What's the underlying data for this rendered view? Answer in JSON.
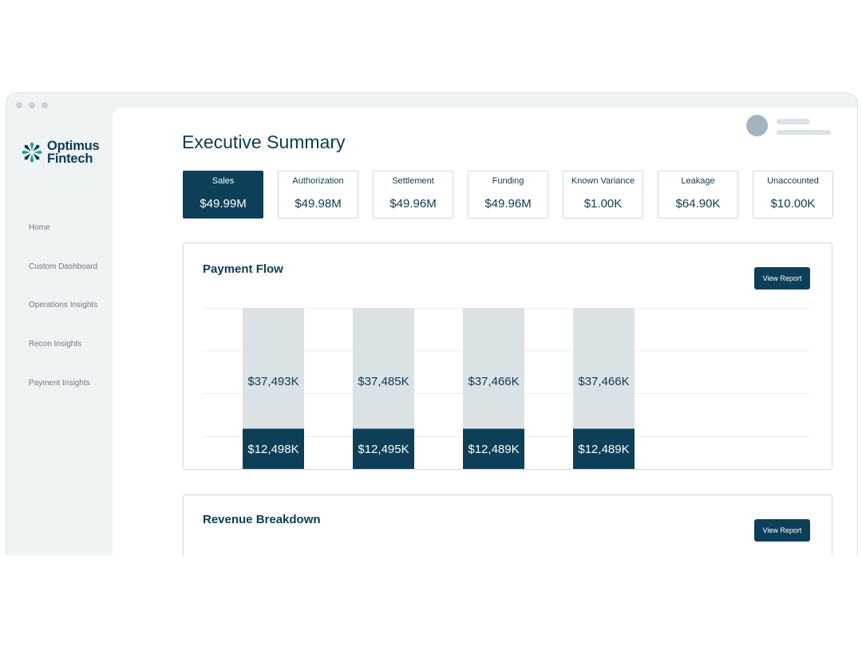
{
  "brand": {
    "name_line1": "Optimus",
    "name_line2": "Fintech",
    "accent": "#0d3f58",
    "logo_color": "#1aa39a"
  },
  "sidebar": {
    "items": [
      {
        "label": "Home"
      },
      {
        "label": "Custom Dashboard"
      },
      {
        "label": "Operations Insights"
      },
      {
        "label": "Recon Insights"
      },
      {
        "label": "Payment Insights"
      }
    ]
  },
  "header": {
    "title": "Executive Summary"
  },
  "kpis": [
    {
      "label": "Sales",
      "value": "$49.99M",
      "active": true
    },
    {
      "label": "Authorization",
      "value": "$49.98M"
    },
    {
      "label": "Settlement",
      "value": "$49.96M"
    },
    {
      "label": "Funding",
      "value": "$49.96M"
    },
    {
      "label": "Known Variance",
      "value": "$1.00K"
    },
    {
      "label": "Leakage",
      "value": "$64.90K"
    },
    {
      "label": "Unaccounted",
      "value": "$10.00K"
    }
  ],
  "payment_flow": {
    "title": "Payment Flow",
    "button_label": "View Report"
  },
  "revenue_breakdown": {
    "title": "Revenue Breakdown",
    "button_label": "View Report"
  },
  "chart_data": {
    "type": "bar",
    "stacked": true,
    "categories": [
      "",
      "",
      "",
      ""
    ],
    "series": [
      {
        "values": [
          12498,
          12495,
          12489,
          12489
        ],
        "labels": [
          "$12,498K",
          "$12,495K",
          "$12,489K",
          "$12,489K"
        ],
        "color": "#0d3f58"
      },
      {
        "values": [
          37493,
          37485,
          37466,
          37466
        ],
        "labels": [
          "$37,493K",
          "$37,485K",
          "$37,466K",
          "$37,466K"
        ],
        "color": "#dbe2e6"
      }
    ],
    "ylim": [
      0,
      50000
    ],
    "grid": true
  }
}
